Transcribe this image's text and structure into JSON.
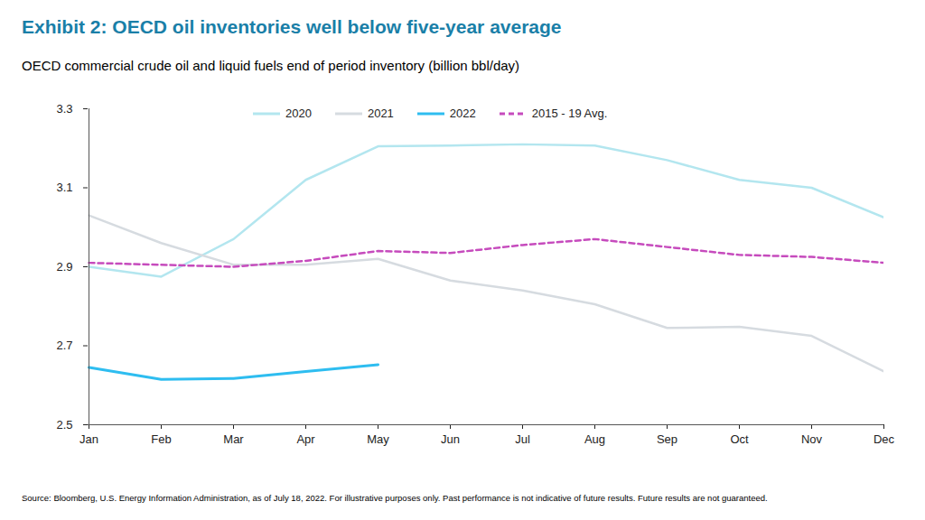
{
  "chart_data": {
    "type": "line",
    "title": "Exhibit 2: OECD oil inventories well below five-year average",
    "subtitle": "OECD commercial crude oil and liquid fuels end of period inventory (billion bbl/day)",
    "source": "Source: Bloomberg, U.S. Energy Information Administration, as of July 18, 2022. For illustrative purposes only. Past performance is not indicative of future results. Future results are not guaranteed.",
    "categories": [
      "Jan",
      "Feb",
      "Mar",
      "Apr",
      "May",
      "Jun",
      "Jul",
      "Aug",
      "Sep",
      "Oct",
      "Nov",
      "Dec"
    ],
    "series": [
      {
        "name": "2020",
        "color": "#b3e6ef",
        "line_style": "solid",
        "values": [
          2.9,
          2.875,
          2.97,
          3.12,
          3.205,
          3.207,
          3.21,
          3.207,
          3.17,
          3.12,
          3.1,
          3.025
        ]
      },
      {
        "name": "2021",
        "color": "#d6dbe0",
        "line_style": "solid",
        "values": [
          3.03,
          2.96,
          2.905,
          2.905,
          2.92,
          2.865,
          2.84,
          2.805,
          2.745,
          2.748,
          2.725,
          2.635
        ]
      },
      {
        "name": "2022",
        "color": "#2ebdf0",
        "line_style": "solid",
        "values": [
          2.645,
          2.615,
          2.617,
          2.635,
          2.652,
          null,
          null,
          null,
          null,
          null,
          null,
          null
        ]
      },
      {
        "name": "2015 - 19 Avg.",
        "color": "#c64bbd",
        "line_style": "dashed",
        "values": [
          2.91,
          2.905,
          2.9,
          2.915,
          2.94,
          2.935,
          2.955,
          2.97,
          2.95,
          2.93,
          2.925,
          2.91
        ]
      }
    ],
    "ylim": [
      2.5,
      3.3
    ],
    "yticks": [
      2.5,
      2.7,
      2.9,
      3.1,
      3.3
    ],
    "grid": false,
    "legend": "top"
  }
}
